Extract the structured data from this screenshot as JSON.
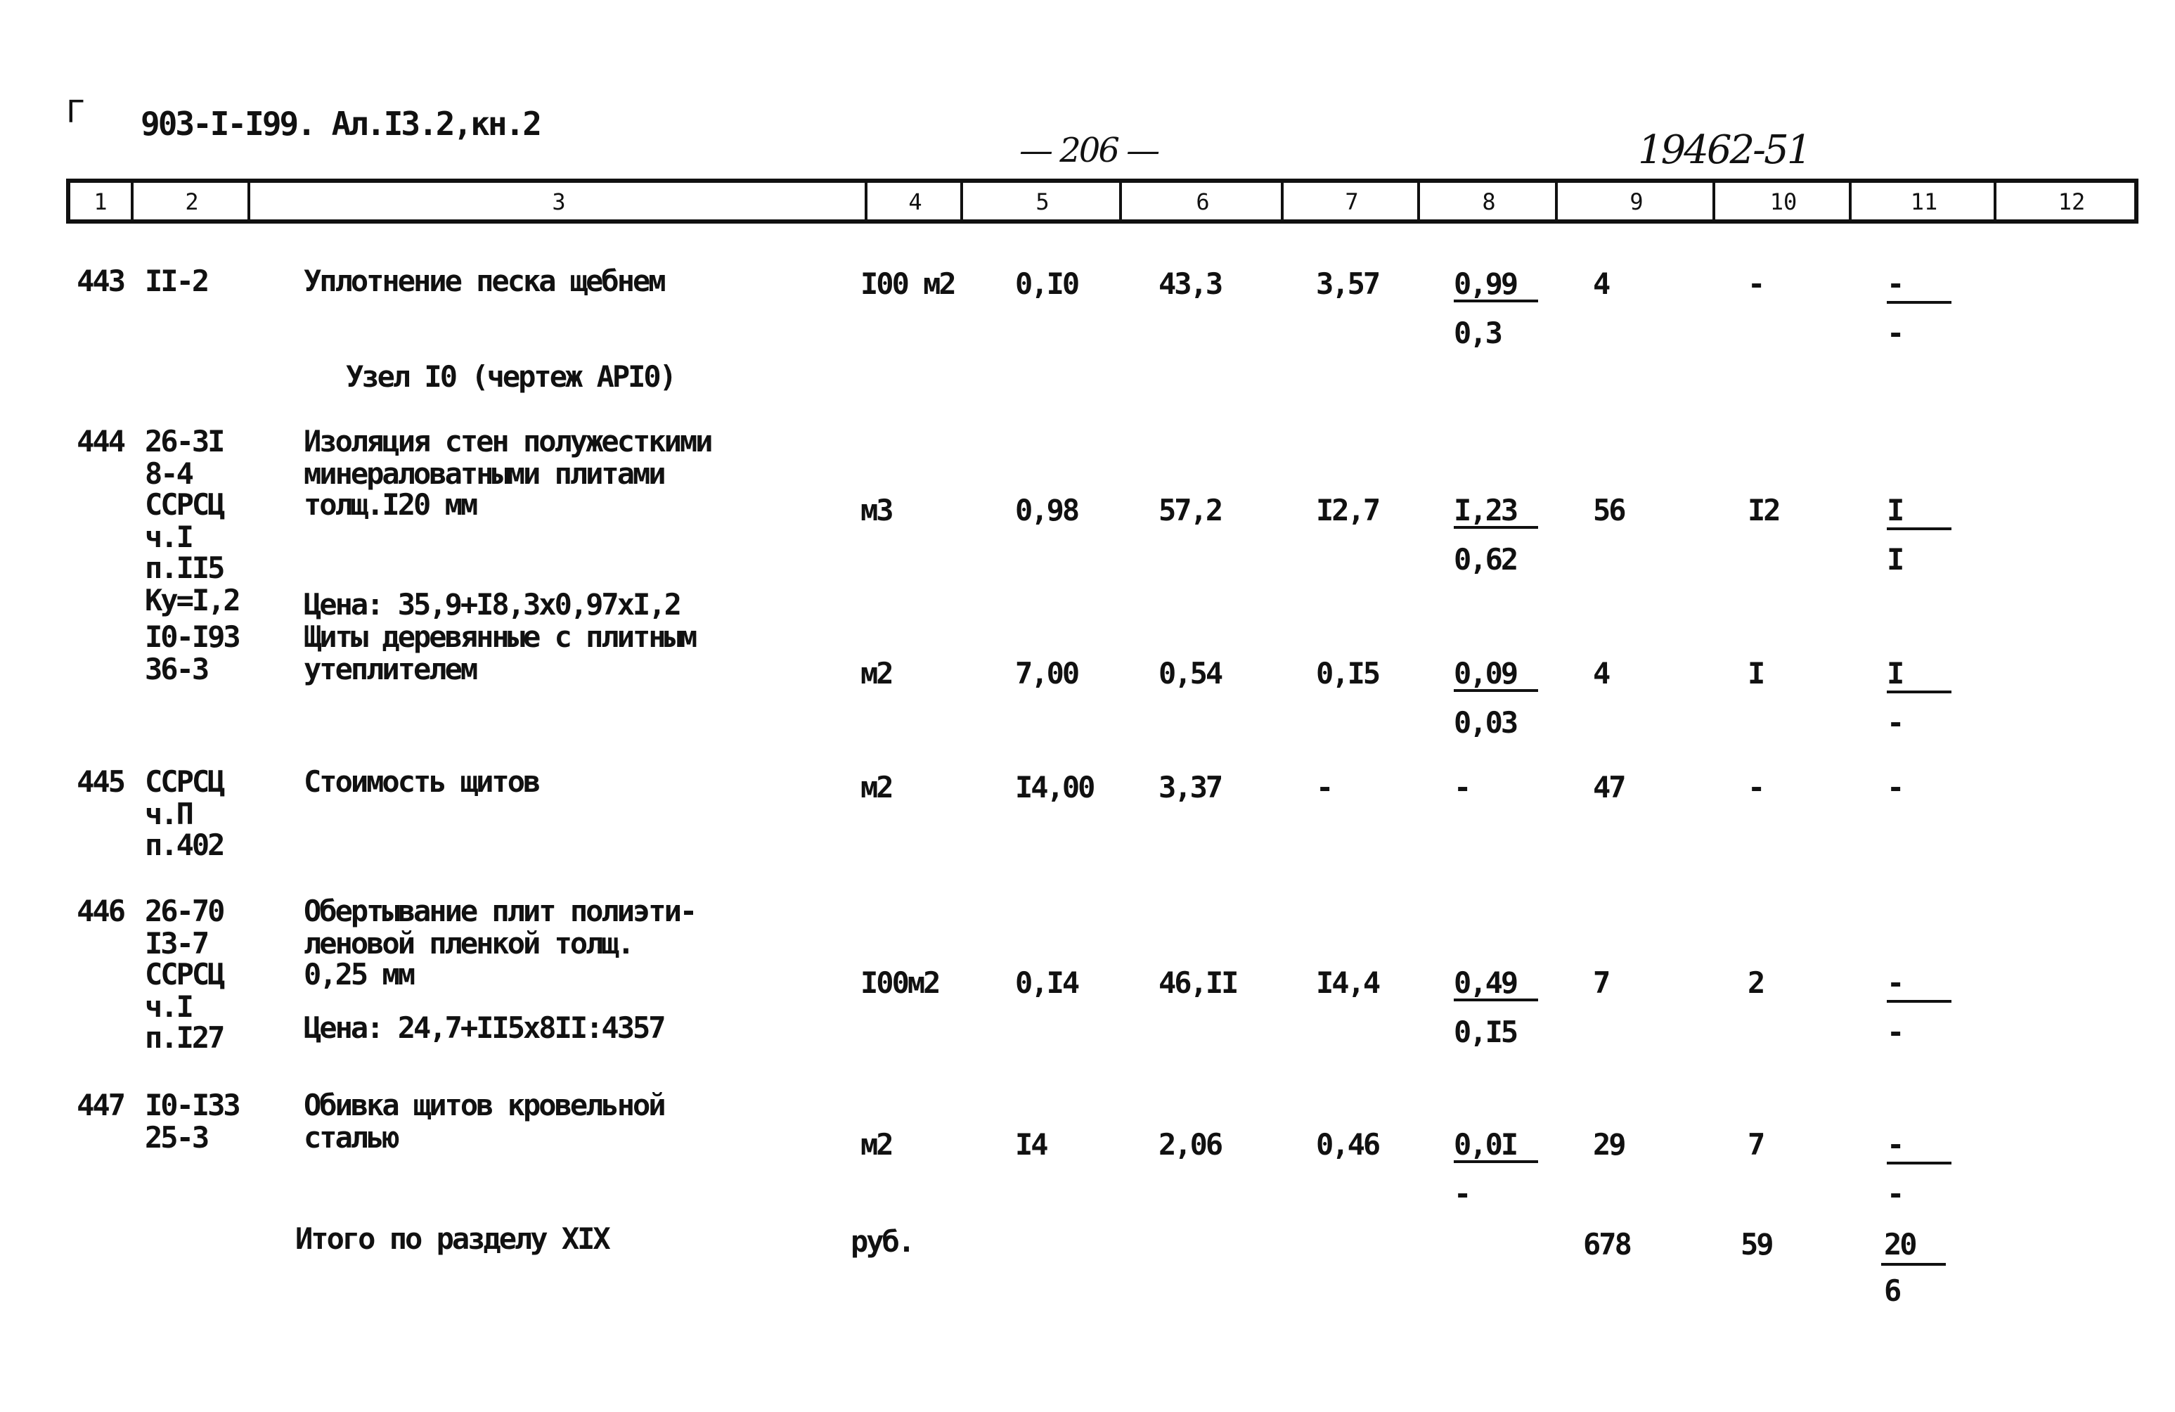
{
  "header": {
    "corner_mark": "Г",
    "doc_code": "903-I-I99. Ал.I3.2,кн.2",
    "page_number": "— 206 —",
    "handwritten_code": "19462-51"
  },
  "columns": [
    "1",
    "2",
    "3",
    "4",
    "5",
    "6",
    "7",
    "8",
    "9",
    "10",
    "11",
    "12"
  ],
  "rows": [
    {
      "no": "443",
      "code": [
        "II-2"
      ],
      "name": [
        "Уплотнение песка щебнем"
      ],
      "unit": "I00 м2",
      "c5": "0,I0",
      "c6": "43,3",
      "c7": "3,57",
      "c8": [
        "0,99",
        "0,3"
      ],
      "c9": "4",
      "c10": "-",
      "c11": [
        "-",
        "-"
      ]
    },
    {
      "section": "Узел I0 (чертеж АРI0)"
    },
    {
      "no": "444",
      "code": [
        "26-3I",
        "8-4",
        "ССРСЦ",
        "ч.I",
        "п.II5",
        "Ку=I,2"
      ],
      "name": [
        "Изоляция стен полужесткими",
        "минераловатными плитами",
        "толщ.I20 мм"
      ],
      "price": "Цена: 35,9+I8,3x0,97xI,2",
      "unit": "м3",
      "c5": "0,98",
      "c6": "57,2",
      "c7": "I2,7",
      "c8": [
        "I,23",
        "0,62"
      ],
      "c9": "56",
      "c10": "I2",
      "c11": [
        "I",
        "I"
      ]
    },
    {
      "no": "",
      "code": [
        "I0-I93",
        "36-3"
      ],
      "name": [
        "Щиты деревянные с плитным",
        "утеплителем"
      ],
      "unit": "м2",
      "c5": "7,00",
      "c6": "0,54",
      "c7": "0,I5",
      "c8": [
        "0,09",
        "0,03"
      ],
      "c9": "4",
      "c10": "I",
      "c11": [
        "I",
        "-"
      ]
    },
    {
      "no": "445",
      "code": [
        "ССРСЦ",
        "ч.П",
        "п.402"
      ],
      "name": [
        "Стоимость щитов"
      ],
      "unit": "м2",
      "c5": "I4,00",
      "c6": "3,37",
      "c7": "-",
      "c8": [
        "-"
      ],
      "c9": "47",
      "c10": "-",
      "c11": [
        "-"
      ]
    },
    {
      "no": "446",
      "code": [
        "26-70",
        "I3-7",
        "ССРСЦ",
        "ч.I",
        "п.I27"
      ],
      "name": [
        "Обертывание плит полиэти-",
        "леновой пленкой толщ.",
        "0,25 мм"
      ],
      "price": "Цена: 24,7+II5x8II:4357",
      "unit": "I00м2",
      "c5": "0,I4",
      "c6": "46,II",
      "c7": "I4,4",
      "c8": [
        "0,49",
        "0,I5"
      ],
      "c9": "7",
      "c10": "2",
      "c11": [
        "-",
        "-"
      ]
    },
    {
      "no": "447",
      "code": [
        "I0-I33",
        "25-3"
      ],
      "name": [
        "Обивка щитов кровельной",
        "сталью"
      ],
      "unit": "м2",
      "c5": "I4",
      "c6": "2,06",
      "c7": "0,46",
      "c8": [
        "0,0I",
        "-"
      ],
      "c9": "29",
      "c10": "7",
      "c11": [
        "-",
        "-"
      ]
    }
  ],
  "total": {
    "label": "Итого по разделу XIX",
    "unit": "руб.",
    "c9": "678",
    "c10": "59",
    "c11": [
      "20",
      "6"
    ]
  }
}
